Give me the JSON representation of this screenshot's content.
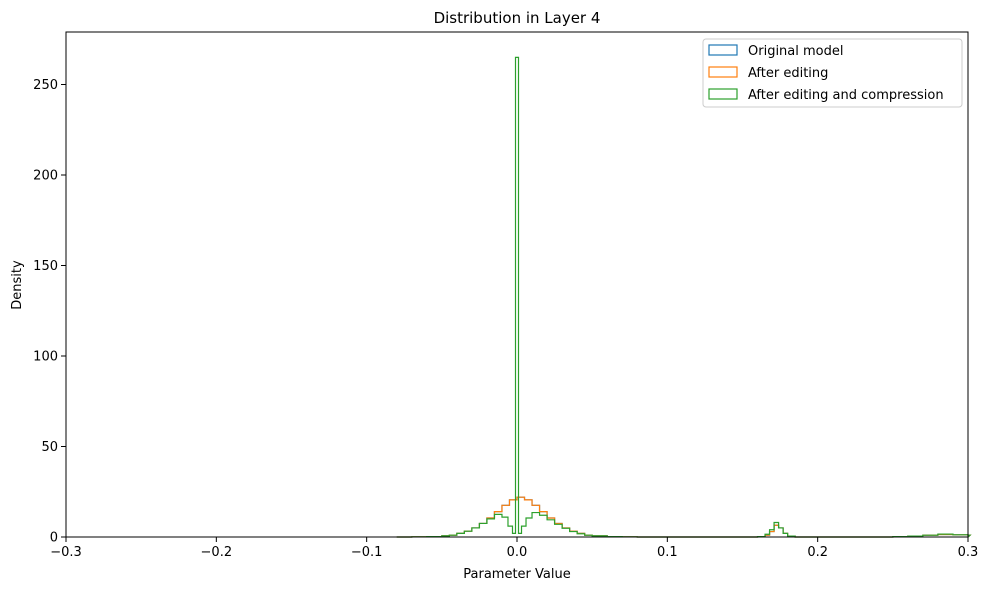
{
  "chart_data": {
    "type": "histogram",
    "title": "Distribution in Layer 4",
    "xlabel": "Parameter Value",
    "ylabel": "Density",
    "xlim": [
      -0.3,
      0.3
    ],
    "ylim": [
      0,
      279
    ],
    "xticks": [
      -0.3,
      -0.2,
      -0.1,
      0.0,
      0.1,
      0.2,
      0.3
    ],
    "xtick_labels": [
      "−0.3",
      "−0.2",
      "−0.1",
      "0.0",
      "0.1",
      "0.2",
      "0.3"
    ],
    "yticks": [
      0,
      50,
      100,
      150,
      200,
      250
    ],
    "ytick_labels": [
      "0",
      "50",
      "100",
      "150",
      "200",
      "250"
    ],
    "grid": false,
    "legend_position": "top-right",
    "series": [
      {
        "name": "Original model",
        "color": "#1f77b4",
        "bins": [
          [
            -0.08,
            0.0
          ],
          [
            -0.07,
            0.1
          ],
          [
            -0.06,
            0.2
          ],
          [
            -0.05,
            0.6
          ],
          [
            -0.045,
            1.0
          ],
          [
            -0.04,
            2.0
          ],
          [
            -0.035,
            3.2
          ],
          [
            -0.03,
            5.0
          ],
          [
            -0.025,
            7.5
          ],
          [
            -0.02,
            10.5
          ],
          [
            -0.015,
            14.0
          ],
          [
            -0.01,
            17.5
          ],
          [
            -0.005,
            20.5
          ],
          [
            0.0,
            22.0
          ],
          [
            0.005,
            20.5
          ],
          [
            0.01,
            17.5
          ],
          [
            0.015,
            14.0
          ],
          [
            0.02,
            10.5
          ],
          [
            0.025,
            7.5
          ],
          [
            0.03,
            5.0
          ],
          [
            0.035,
            3.2
          ],
          [
            0.04,
            2.0
          ],
          [
            0.045,
            1.0
          ],
          [
            0.05,
            0.6
          ],
          [
            0.06,
            0.2
          ],
          [
            0.07,
            0.1
          ],
          [
            0.08,
            0.0
          ],
          [
            0.16,
            0.2
          ],
          [
            0.165,
            1.0
          ],
          [
            0.168,
            3.0
          ],
          [
            0.171,
            6.5
          ],
          [
            0.174,
            5.0
          ],
          [
            0.177,
            2.0
          ],
          [
            0.18,
            0.5
          ],
          [
            0.185,
            0.0
          ],
          [
            0.25,
            0.2
          ],
          [
            0.26,
            0.5
          ],
          [
            0.27,
            1.0
          ],
          [
            0.28,
            1.4
          ],
          [
            0.29,
            1.2
          ],
          [
            0.3,
            1.0
          ]
        ]
      },
      {
        "name": "After editing",
        "color": "#ff7f0e",
        "bins": [
          [
            -0.08,
            0.0
          ],
          [
            -0.07,
            0.1
          ],
          [
            -0.06,
            0.2
          ],
          [
            -0.05,
            0.6
          ],
          [
            -0.045,
            1.0
          ],
          [
            -0.04,
            2.0
          ],
          [
            -0.035,
            3.2
          ],
          [
            -0.03,
            5.0
          ],
          [
            -0.025,
            7.5
          ],
          [
            -0.02,
            10.5
          ],
          [
            -0.015,
            14.0
          ],
          [
            -0.01,
            17.5
          ],
          [
            -0.005,
            20.5
          ],
          [
            0.0,
            22.0
          ],
          [
            0.005,
            20.5
          ],
          [
            0.01,
            17.5
          ],
          [
            0.015,
            14.0
          ],
          [
            0.02,
            10.5
          ],
          [
            0.025,
            7.5
          ],
          [
            0.03,
            5.0
          ],
          [
            0.035,
            3.2
          ],
          [
            0.04,
            2.0
          ],
          [
            0.045,
            1.0
          ],
          [
            0.05,
            0.6
          ],
          [
            0.06,
            0.2
          ],
          [
            0.07,
            0.1
          ],
          [
            0.08,
            0.0
          ],
          [
            0.16,
            0.2
          ],
          [
            0.165,
            1.0
          ],
          [
            0.168,
            3.0
          ],
          [
            0.171,
            6.5
          ],
          [
            0.174,
            5.0
          ],
          [
            0.177,
            2.0
          ],
          [
            0.18,
            0.5
          ],
          [
            0.185,
            0.0
          ],
          [
            0.25,
            0.2
          ],
          [
            0.26,
            0.5
          ],
          [
            0.27,
            1.0
          ],
          [
            0.28,
            1.4
          ],
          [
            0.29,
            1.2
          ],
          [
            0.3,
            1.0
          ]
        ]
      },
      {
        "name": "After editing and compression",
        "color": "#2ca02c",
        "bins": [
          [
            -0.08,
            0.0
          ],
          [
            -0.07,
            0.1
          ],
          [
            -0.06,
            0.2
          ],
          [
            -0.05,
            0.6
          ],
          [
            -0.045,
            1.0
          ],
          [
            -0.04,
            2.0
          ],
          [
            -0.035,
            3.2
          ],
          [
            -0.03,
            5.0
          ],
          [
            -0.025,
            7.5
          ],
          [
            -0.02,
            10.0
          ],
          [
            -0.015,
            12.5
          ],
          [
            -0.01,
            11.0
          ],
          [
            -0.006,
            6.0
          ],
          [
            -0.003,
            2.0
          ],
          [
            -0.001,
            265.0
          ],
          [
            0.001,
            2.0
          ],
          [
            0.003,
            6.0
          ],
          [
            0.006,
            10.5
          ],
          [
            0.01,
            13.5
          ],
          [
            0.015,
            12.0
          ],
          [
            0.02,
            9.5
          ],
          [
            0.025,
            7.0
          ],
          [
            0.03,
            4.8
          ],
          [
            0.035,
            3.0
          ],
          [
            0.04,
            1.8
          ],
          [
            0.045,
            1.0
          ],
          [
            0.05,
            0.6
          ],
          [
            0.06,
            0.2
          ],
          [
            0.07,
            0.1
          ],
          [
            0.08,
            0.0
          ],
          [
            0.16,
            0.2
          ],
          [
            0.165,
            1.5
          ],
          [
            0.168,
            4.0
          ],
          [
            0.171,
            8.0
          ],
          [
            0.174,
            5.0
          ],
          [
            0.177,
            2.0
          ],
          [
            0.18,
            0.5
          ],
          [
            0.185,
            0.0
          ],
          [
            0.25,
            0.2
          ],
          [
            0.26,
            0.5
          ],
          [
            0.27,
            1.0
          ],
          [
            0.28,
            1.6
          ],
          [
            0.29,
            1.2
          ],
          [
            0.3,
            1.0
          ]
        ]
      }
    ]
  }
}
